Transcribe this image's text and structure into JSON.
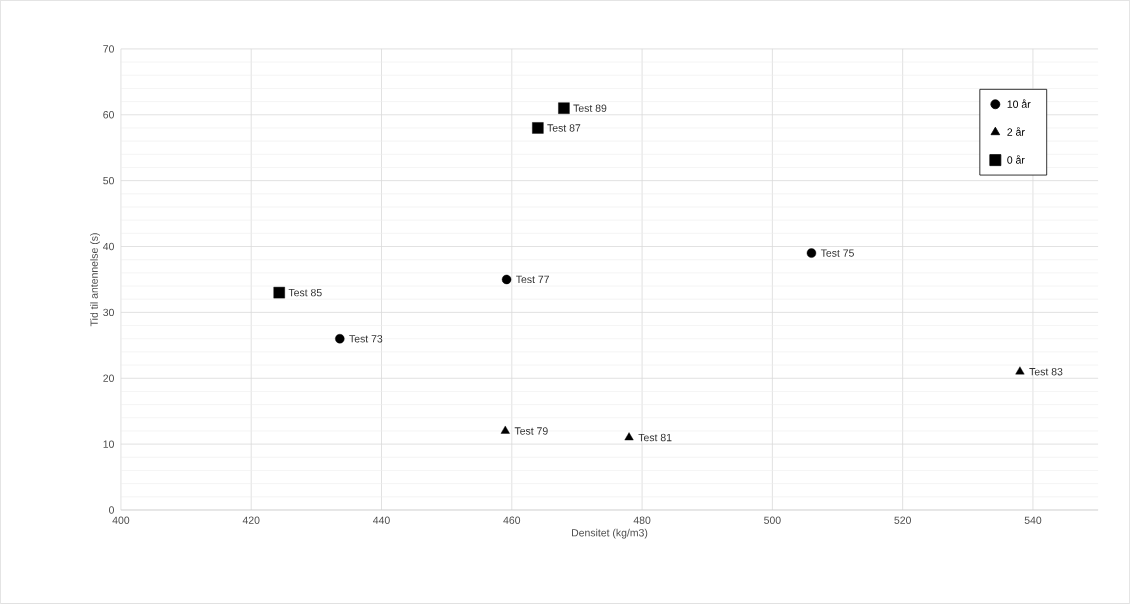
{
  "chart_data": {
    "type": "scatter",
    "xlabel": "Densitet (kg/m3)",
    "ylabel": "Tid til antennelse (s)",
    "xlim": [
      400,
      550
    ],
    "ylim": [
      0,
      70
    ],
    "xticks": [
      400,
      420,
      440,
      460,
      480,
      500,
      520,
      540
    ],
    "yticks": [
      0,
      10,
      20,
      30,
      40,
      50,
      60,
      70
    ],
    "grid": true,
    "legend": "top right",
    "series": [
      {
        "name": "10 år",
        "color": "#000000",
        "marker": "circle",
        "x": [
          433.6,
          459.2,
          506
        ],
        "values": [
          26,
          35,
          39
        ]
      },
      {
        "name": "2 år",
        "color": "#000000",
        "marker": "triangle",
        "x": [
          459,
          478,
          538
        ],
        "values": [
          12,
          11,
          21
        ]
      },
      {
        "name": "0 år",
        "color": "#000000",
        "marker": "square",
        "x": [
          424.3,
          464,
          468
        ],
        "values": [
          33,
          58,
          61
        ]
      }
    ],
    "annotations": [
      {
        "text": "Test 73",
        "x": 433.6,
        "y": 26
      },
      {
        "text": "Test 77",
        "x": 459.2,
        "y": 35
      },
      {
        "text": "Test 75",
        "x": 506,
        "y": 39
      },
      {
        "text": "Test 79",
        "x": 459,
        "y": 12
      },
      {
        "text": "Test 81",
        "x": 478,
        "y": 11
      },
      {
        "text": "Test 83",
        "x": 538,
        "y": 21
      },
      {
        "text": "Test 85",
        "x": 424.3,
        "y": 33
      },
      {
        "text": "Test 87",
        "x": 464,
        "y": 58
      },
      {
        "text": "Test 89",
        "x": 468,
        "y": 61
      }
    ]
  }
}
